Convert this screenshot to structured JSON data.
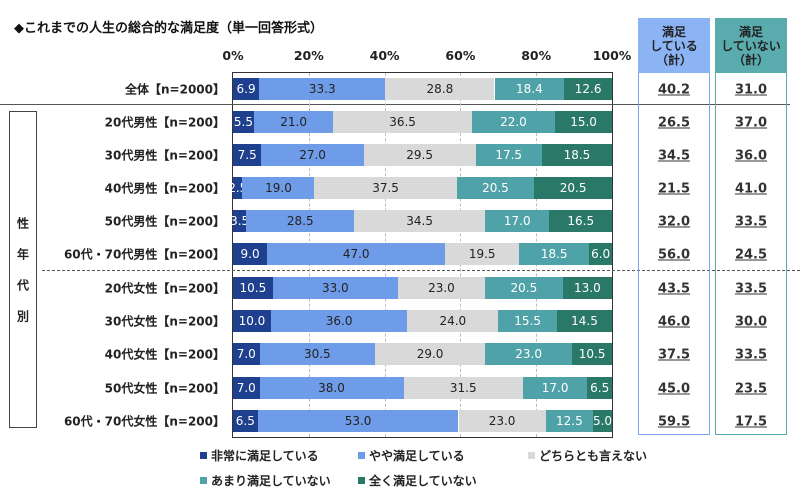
{
  "chart_data": {
    "type": "bar",
    "orientation": "horizontal",
    "stacked": "100%",
    "title": "◆これまでの人生の総合的な満足度（単一回答形式）",
    "x_ticks": [
      "0%",
      "20%",
      "40%",
      "60%",
      "80%",
      "100%"
    ],
    "xlim": [
      0,
      100
    ],
    "grid": true,
    "legend_position": "bottom",
    "group_label": "性年代別",
    "categories": [
      "全体【n=2000】",
      "20代男性【n=200】",
      "30代男性【n=200】",
      "40代男性【n=200】",
      "50代男性【n=200】",
      "60代・70代男性【n=200】",
      "20代女性【n=200】",
      "30代女性【n=200】",
      "40代女性【n=200】",
      "50代女性【n=200】",
      "60代・70代女性【n=200】"
    ],
    "series": [
      {
        "name": "非常に満足している",
        "color": "#1f3f8f",
        "values": [
          6.9,
          5.5,
          7.5,
          2.5,
          3.5,
          9.0,
          10.5,
          10.0,
          7.0,
          7.0,
          6.5
        ]
      },
      {
        "name": "やや満足している",
        "color": "#6f9ce8",
        "values": [
          33.3,
          21.0,
          27.0,
          19.0,
          28.5,
          47.0,
          33.0,
          36.0,
          30.5,
          38.0,
          53.0
        ]
      },
      {
        "name": "どちらとも言えない",
        "color": "#d9d9d9",
        "values": [
          28.8,
          36.5,
          29.5,
          37.5,
          34.5,
          19.5,
          23.0,
          24.0,
          29.0,
          31.5,
          23.0
        ]
      },
      {
        "name": "あまり満足していない",
        "color": "#4fa3a8",
        "values": [
          18.4,
          22.0,
          17.5,
          20.5,
          17.0,
          18.5,
          20.5,
          15.5,
          23.0,
          17.0,
          12.5
        ]
      },
      {
        "name": "全く満足していない",
        "color": "#2a7867",
        "values": [
          12.6,
          15.0,
          18.5,
          20.5,
          16.5,
          6.0,
          13.0,
          14.5,
          10.5,
          6.5,
          5.0
        ]
      }
    ],
    "summary_columns": [
      {
        "header": [
          "満足",
          "している",
          "（計）"
        ],
        "color": "#8cb4f5",
        "border": "#7aa6f0",
        "values": [
          "40.2",
          "26.5",
          "34.5",
          "21.5",
          "32.0",
          "56.0",
          "43.5",
          "46.0",
          "37.5",
          "45.0",
          "59.5"
        ]
      },
      {
        "header": [
          "満足",
          "していない",
          "（計）"
        ],
        "color": "#5aabad",
        "border": "#5aabad",
        "values": [
          "31.0",
          "37.0",
          "36.0",
          "41.0",
          "33.5",
          "24.5",
          "33.5",
          "30.0",
          "33.5",
          "23.5",
          "17.5"
        ]
      }
    ]
  }
}
